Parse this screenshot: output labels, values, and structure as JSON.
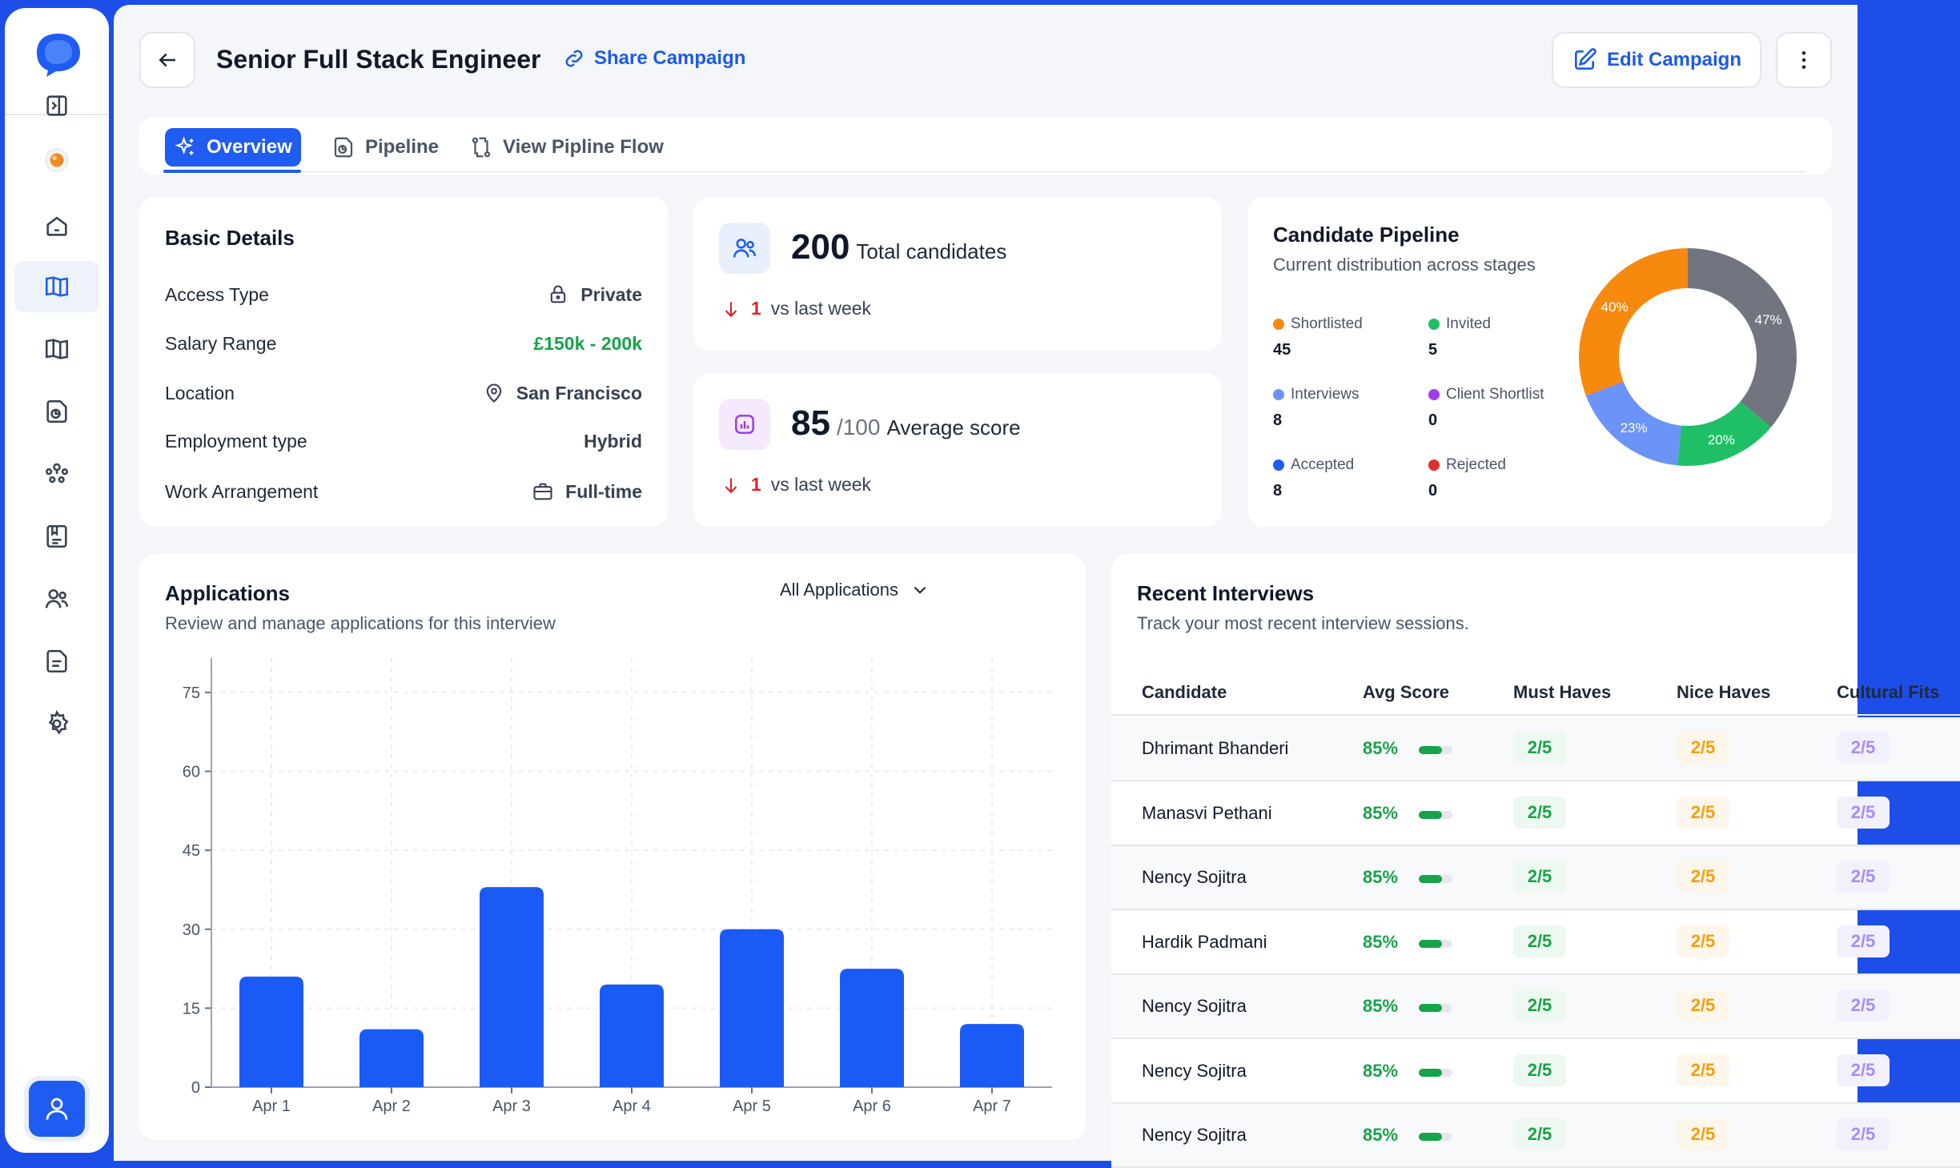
{
  "header": {
    "title": "Senior Full Stack Engineer",
    "share_label": "Share Campaign",
    "edit_label": "Edit Campaign"
  },
  "tabs": [
    {
      "label": "Overview",
      "icon": "sparkle-icon"
    },
    {
      "label": "Pipeline",
      "icon": "pipeline-icon"
    },
    {
      "label": "View Pipline Flow",
      "icon": "flow-icon"
    }
  ],
  "basic_details": {
    "title": "Basic Details",
    "rows": [
      {
        "label": "Access Type",
        "value": "Private",
        "icon": "lock-icon"
      },
      {
        "label": "Salary Range",
        "value": "£150k - 200k",
        "icon": ""
      },
      {
        "label": "Location",
        "value": "San Francisco",
        "icon": "location-pin-icon"
      },
      {
        "label": "Employment type",
        "value": "Hybrid",
        "icon": ""
      },
      {
        "label": "Work Arrangement",
        "value": "Full-time",
        "icon": "briefcase-icon"
      }
    ]
  },
  "stats": {
    "candidates": {
      "value": "200",
      "label": "Total candidates",
      "trend_value": "1",
      "trend_text": "vs last week"
    },
    "score": {
      "value": "85",
      "unit": "/100",
      "label": "Average score",
      "trend_value": "1",
      "trend_text": "vs last week"
    }
  },
  "pipeline": {
    "title": "Candidate Pipeline",
    "subtitle": "Current distribution across stages",
    "legend": [
      {
        "label": "Shortlisted",
        "value": "45",
        "color": "#f7890f"
      },
      {
        "label": "Invited",
        "value": "5",
        "color": "#1fbf67"
      },
      {
        "label": "Interviews",
        "value": "8",
        "color": "#6c93f7"
      },
      {
        "label": "Client Shortlist",
        "value": "0",
        "color": "#a33df0"
      },
      {
        "label": "Accepted",
        "value": "8",
        "color": "#1f5cf2"
      },
      {
        "label": "Rejected",
        "value": "0",
        "color": "#dc2f2f"
      }
    ],
    "donut": [
      {
        "label": "47%",
        "value": 47,
        "color": "#70757f"
      },
      {
        "label": "20%",
        "value": 20,
        "color": "#1fbf67"
      },
      {
        "label": "23%",
        "value": 23,
        "color": "#6c93f7"
      },
      {
        "label": "40%",
        "value": 40,
        "color": "#f7890f"
      }
    ]
  },
  "applications": {
    "title": "Applications",
    "subtitle": "Review and manage applications for this interview",
    "filter": "All Applications"
  },
  "chart_data": {
    "type": "bar",
    "categories": [
      "Apr 1",
      "Apr 2",
      "Apr 3",
      "Apr 4",
      "Apr 5",
      "Apr 6",
      "Apr 7"
    ],
    "values": [
      21,
      11,
      38,
      19.5,
      30,
      22.5,
      12
    ],
    "ylim": [
      0,
      80
    ],
    "yticks": [
      0,
      15,
      30,
      45,
      60,
      75
    ],
    "color": "#1a5bf5",
    "grid": true
  },
  "interviews": {
    "title": "Recent Interviews",
    "subtitle": "Track your most recent interview sessions.",
    "columns": [
      "Candidate",
      "Avg Score",
      "Must Haves",
      "Nice Haves",
      "Cultural Fits"
    ],
    "rows": [
      {
        "name": "Dhrimant Bhanderi",
        "score": "85%",
        "fill": 0.7,
        "must": "2/5",
        "nice": "2/5",
        "culture": "2/5"
      },
      {
        "name": "Manasvi Pethani",
        "score": "85%",
        "fill": 0.7,
        "must": "2/5",
        "nice": "2/5",
        "culture": "2/5"
      },
      {
        "name": "Nency Sojitra",
        "score": "85%",
        "fill": 0.7,
        "must": "2/5",
        "nice": "2/5",
        "culture": "2/5"
      },
      {
        "name": "Hardik Padmani",
        "score": "85%",
        "fill": 0.7,
        "must": "2/5",
        "nice": "2/5",
        "culture": "2/5"
      },
      {
        "name": "Nency Sojitra",
        "score": "85%",
        "fill": 0.7,
        "must": "2/5",
        "nice": "2/5",
        "culture": "2/5"
      },
      {
        "name": "Nency Sojitra",
        "score": "85%",
        "fill": 0.7,
        "must": "2/5",
        "nice": "2/5",
        "culture": "2/5"
      },
      {
        "name": "Nency Sojitra",
        "score": "85%",
        "fill": 0.7,
        "must": "2/5",
        "nice": "2/5",
        "culture": "2/5"
      }
    ]
  },
  "sidebar": {
    "items": [
      {
        "icon": "collapse-sidebar-icon"
      },
      {
        "icon": "status-orb-icon"
      },
      {
        "icon": "home-icon"
      },
      {
        "icon": "book-icon"
      },
      {
        "icon": "book-icon"
      },
      {
        "icon": "pipeline-icon"
      },
      {
        "icon": "team-icon"
      },
      {
        "icon": "clipboard-icon"
      },
      {
        "icon": "users-icon"
      },
      {
        "icon": "document-icon"
      },
      {
        "icon": "settings-icon"
      }
    ]
  }
}
